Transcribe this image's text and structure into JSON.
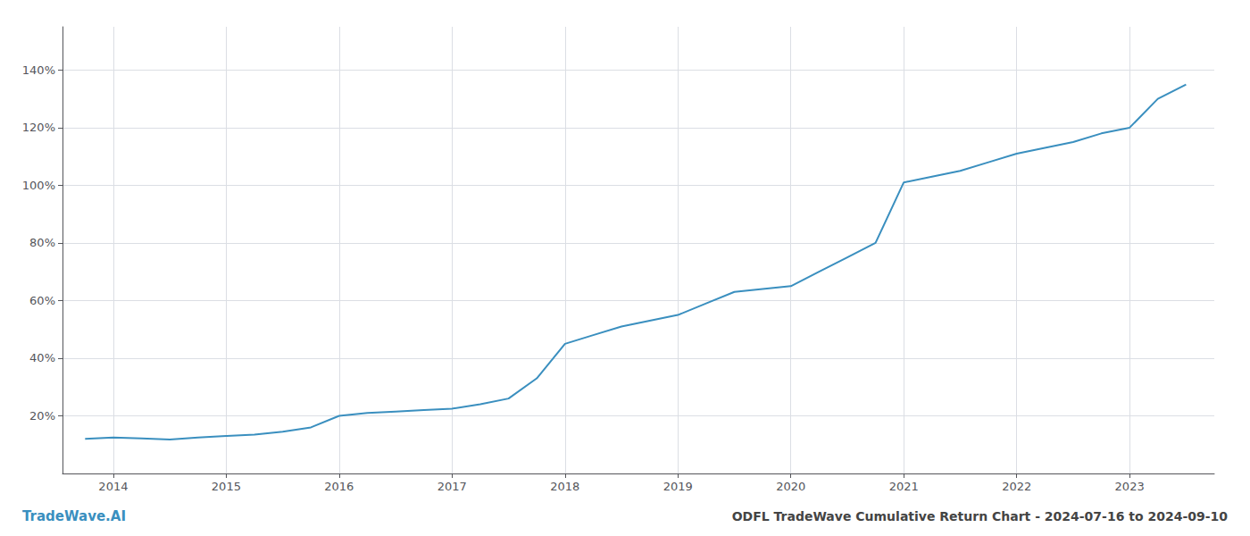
{
  "chart_data": {
    "type": "line",
    "title": "ODFL TradeWave Cumulative Return Chart - 2024-07-16 to 2024-09-10",
    "annotations": [
      "TradeWave.AI"
    ],
    "color": "#3a8fbf",
    "x": [
      2013.75,
      2014.0,
      2014.25,
      2014.5,
      2014.75,
      2015.0,
      2015.25,
      2015.5,
      2015.75,
      2016.0,
      2016.25,
      2016.5,
      2016.75,
      2017.0,
      2017.25,
      2017.5,
      2017.75,
      2018.0,
      2018.25,
      2018.5,
      2018.75,
      2019.0,
      2019.25,
      2019.5,
      2019.75,
      2020.0,
      2020.25,
      2020.5,
      2020.75,
      2021.0,
      2021.25,
      2021.5,
      2021.75,
      2022.0,
      2022.25,
      2022.5,
      2022.75,
      2023.0,
      2023.25,
      2023.5
    ],
    "values": [
      12.0,
      12.5,
      12.2,
      11.8,
      12.5,
      13.0,
      13.5,
      14.5,
      16.0,
      20.0,
      21.0,
      21.5,
      22.0,
      22.5,
      24.0,
      26.0,
      33.0,
      45.0,
      48.0,
      51.0,
      53.0,
      55.0,
      59.0,
      63.0,
      64.0,
      65.0,
      70.0,
      75.0,
      80.0,
      101.0,
      103.0,
      105.0,
      108.0,
      111.0,
      113.0,
      115.0,
      118.0,
      120.0,
      130.0,
      135.0
    ],
    "xlim": [
      2013.55,
      2023.75
    ],
    "ylim": [
      0,
      155
    ],
    "xticks": [
      2014,
      2015,
      2016,
      2017,
      2018,
      2019,
      2020,
      2021,
      2022,
      2023
    ],
    "yticks": [
      {
        "value": 20,
        "label": "20%"
      },
      {
        "value": 40,
        "label": "40%"
      },
      {
        "value": 60,
        "label": "60%"
      },
      {
        "value": 80,
        "label": "80%"
      },
      {
        "value": 100,
        "label": "100%"
      },
      {
        "value": 120,
        "label": "120%"
      },
      {
        "value": 140,
        "label": "140%"
      }
    ],
    "grid": true
  }
}
